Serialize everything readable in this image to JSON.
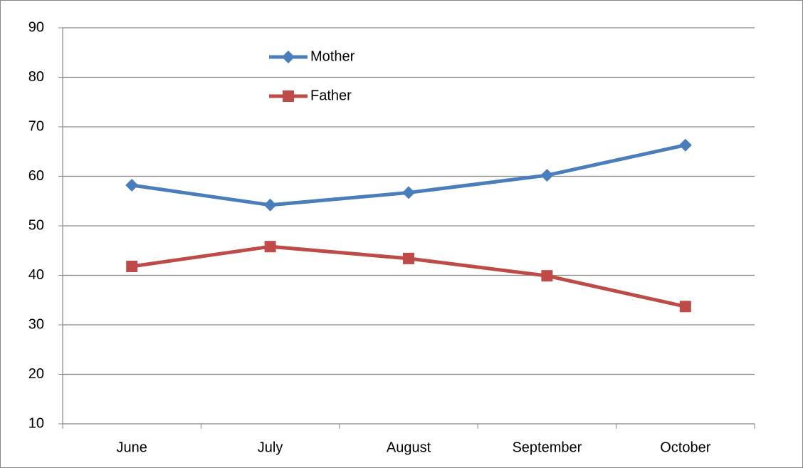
{
  "chart_data": {
    "type": "line",
    "categories": [
      "June",
      "July",
      "August",
      "September",
      "October"
    ],
    "series": [
      {
        "name": "Mother",
        "color": "#4a7ebb",
        "marker": "diamond",
        "values": [
          58.2,
          54.2,
          56.7,
          60.2,
          66.3
        ]
      },
      {
        "name": "Father",
        "color": "#be4b48",
        "marker": "square",
        "values": [
          41.8,
          45.8,
          43.4,
          39.9,
          33.7
        ]
      }
    ],
    "ylim": [
      10,
      90
    ],
    "yticks": [
      10,
      20,
      30,
      40,
      50,
      60,
      70,
      80,
      90
    ],
    "grid": true,
    "legend": "top"
  }
}
